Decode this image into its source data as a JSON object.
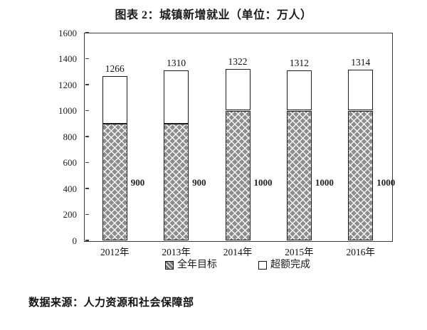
{
  "title": "图表 2：城镇新增就业（单位：万人）",
  "source_note": "数据来源：人力资源和社会保障部",
  "chart_data": {
    "type": "bar",
    "subtype": "stacked-vertical",
    "categories": [
      "2012年",
      "2013年",
      "2014年",
      "2015年",
      "2016年"
    ],
    "series": [
      {
        "name": "全年目标",
        "style": "hatched",
        "values": [
          900,
          900,
          1000,
          1000,
          1000
        ]
      },
      {
        "name": "超额完成",
        "style": "white",
        "values": [
          366,
          410,
          322,
          312,
          314
        ]
      }
    ],
    "totals": [
      1266,
      1310,
      1322,
      1312,
      1314
    ],
    "total_labels": [
      "1266",
      "1310",
      "1322",
      "1312",
      "1314"
    ],
    "target_labels": [
      "900",
      "900",
      "1000",
      "1000",
      "1000"
    ],
    "ylim": [
      0,
      1600
    ],
    "yticks": [
      0,
      200,
      400,
      600,
      800,
      1000,
      1200,
      1400,
      1600
    ],
    "grid": false,
    "legend_position": "bottom",
    "title": "图表 2：城镇新增就业（单位：万人）"
  },
  "legend": {
    "items": [
      {
        "label": "全年目标",
        "swatch": "hatched"
      },
      {
        "label": "超额完成",
        "swatch": "white"
      }
    ]
  },
  "colors": {
    "hatch_fill": "#8d8d8d",
    "hatch_line": "#ffffff",
    "bar_border": "#1c1c1c",
    "axis": "#3a3a3a",
    "text": "#1a1a1a",
    "background": "#ffffff"
  }
}
